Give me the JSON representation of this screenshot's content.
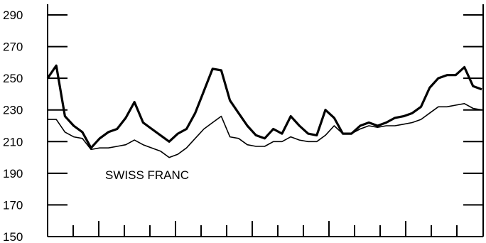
{
  "chart_data": {
    "type": "line",
    "title": "",
    "xlabel": "",
    "ylabel": "",
    "ylim": [
      150,
      290
    ],
    "yticks": [
      290,
      270,
      250,
      230,
      210,
      190,
      170,
      150
    ],
    "ytick_labels": [
      "290",
      "270",
      "250",
      "230",
      "210",
      "190",
      "170",
      "150"
    ],
    "x_tick_count": 16,
    "grid": false,
    "annotation": "SWISS FRANC",
    "series": [
      {
        "style": "thick",
        "x": [
          0,
          2,
          4,
          6,
          8,
          10,
          12,
          14,
          16,
          18,
          20,
          22,
          24,
          26,
          28,
          30,
          32,
          34,
          36,
          38,
          40,
          42,
          44,
          46,
          48,
          50,
          52,
          54,
          56,
          58,
          60,
          62,
          64,
          66,
          68,
          70,
          72,
          74,
          76,
          78,
          80,
          82,
          84,
          86,
          88,
          90,
          92,
          94,
          96,
          98,
          100
        ],
        "values": [
          250,
          258,
          226,
          220,
          216,
          206,
          212,
          216,
          218,
          225,
          235,
          222,
          218,
          214,
          210,
          215,
          218,
          228,
          242,
          256,
          255,
          236,
          228,
          220,
          214,
          212,
          218,
          215,
          226,
          220,
          215,
          214,
          230,
          225,
          215,
          215,
          220,
          222,
          220,
          222,
          225,
          226,
          228,
          232,
          244,
          250,
          252,
          252,
          257,
          245,
          243
        ]
      },
      {
        "style": "thin",
        "x": [
          0,
          2,
          4,
          6,
          8,
          10,
          12,
          14,
          16,
          18,
          20,
          22,
          24,
          26,
          28,
          30,
          32,
          34,
          36,
          38,
          40,
          42,
          44,
          46,
          48,
          50,
          52,
          54,
          56,
          58,
          60,
          62,
          64,
          66,
          68,
          70,
          72,
          74,
          76,
          78,
          80,
          82,
          84,
          86,
          88,
          90,
          92,
          94,
          96,
          98,
          100
        ],
        "values": [
          224,
          224,
          216,
          213,
          212,
          205,
          206,
          206,
          207,
          208,
          211,
          208,
          206,
          204,
          200,
          202,
          206,
          212,
          218,
          222,
          226,
          213,
          212,
          208,
          207,
          207,
          210,
          210,
          213,
          211,
          210,
          210,
          214,
          220,
          215,
          215,
          218,
          220,
          219,
          220,
          220,
          221,
          222,
          224,
          228,
          232,
          232,
          233,
          234,
          231,
          230
        ]
      }
    ]
  }
}
